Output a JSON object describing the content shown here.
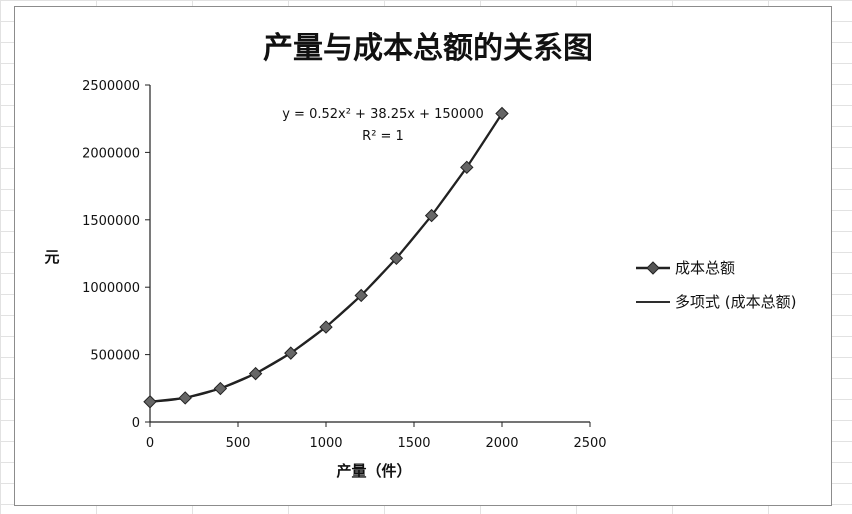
{
  "chart_data": {
    "type": "scatter",
    "title": "产量与成本总额的关系图",
    "xlabel": "产量（件）",
    "ylabel": "元",
    "xlim": [
      0,
      2500
    ],
    "ylim": [
      0,
      2500000
    ],
    "xticks": [
      "0",
      "500",
      "1000",
      "1500",
      "2000",
      "2500"
    ],
    "yticks": [
      "0",
      "500000",
      "1000000",
      "1500000",
      "2000000",
      "2500000"
    ],
    "grid": false,
    "legend_position": "right",
    "series": [
      {
        "name": "成本总额",
        "marker": "diamond",
        "color": "#222222",
        "x": [
          0,
          200,
          400,
          600,
          800,
          1000,
          1200,
          1400,
          1600,
          1800,
          2000
        ],
        "y": [
          150000,
          178450,
          248100,
          358950,
          511000,
          704250,
          938700,
          1214350,
          1531200,
          1889250,
          2288500
        ]
      },
      {
        "name": "多项式 (成本总额)",
        "type": "trendline",
        "color": "#111111",
        "equation": "y = 0.52x² + 38.25x + 150000",
        "r2": "R² = 1"
      }
    ]
  }
}
